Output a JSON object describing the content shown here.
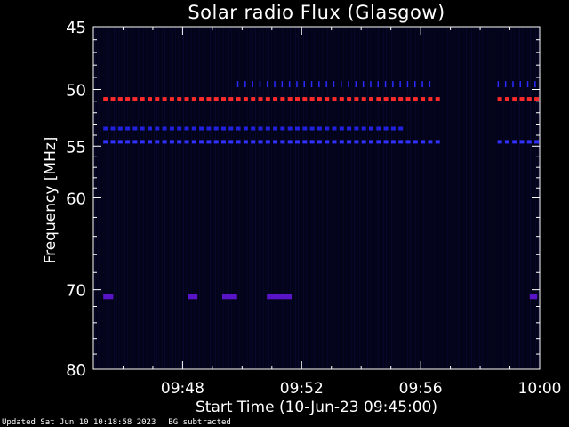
{
  "chart_data": {
    "type": "heatmap",
    "title": "Solar radio Flux (Glasgow)",
    "xlabel": "Start Time (10-Jun-23 09:45:00)",
    "ylabel": "Frequency [MHz]",
    "x_range": [
      "09:45",
      "10:00"
    ],
    "y_range": [
      45,
      80
    ],
    "y_scale": "log",
    "y_inverted": true,
    "x_ticks": [
      "09:48",
      "09:52",
      "09:56",
      "10:00"
    ],
    "y_ticks": [
      45,
      50,
      55,
      60,
      70,
      80
    ],
    "background": "#03031a",
    "bands": [
      {
        "freq": 50.8,
        "start": "09:45:20",
        "end": "09:56:30",
        "color": "#ff2a2a",
        "pattern": "dashed"
      },
      {
        "freq": 50.8,
        "start": "09:58:35",
        "end": "09:59:50",
        "color": "#ff2a2a",
        "pattern": "dashed"
      },
      {
        "freq": 53.4,
        "start": "09:45:20",
        "end": "09:55:30",
        "color": "#2020dd",
        "pattern": "dashed"
      },
      {
        "freq": 54.6,
        "start": "09:45:20",
        "end": "09:56:30",
        "color": "#3030ff",
        "pattern": "dashed"
      },
      {
        "freq": 54.6,
        "start": "09:58:35",
        "end": "09:59:50",
        "color": "#3030ff",
        "pattern": "dashed"
      },
      {
        "freq": 49.6,
        "start": "09:49:50",
        "end": "09:56:30",
        "color": "#2a2aff",
        "pattern": "ticks"
      },
      {
        "freq": 49.6,
        "start": "09:58:35",
        "end": "09:59:55",
        "color": "#2a2aff",
        "pattern": "ticks"
      },
      {
        "freq": 70.8,
        "start": "09:45:20",
        "end": "09:45:40",
        "color": "#5a14c8",
        "pattern": "solid"
      },
      {
        "freq": 70.8,
        "start": "09:48:10",
        "end": "09:48:30",
        "color": "#5a14c8",
        "pattern": "solid"
      },
      {
        "freq": 70.8,
        "start": "09:49:20",
        "end": "09:49:50",
        "color": "#5a14c8",
        "pattern": "solid"
      },
      {
        "freq": 70.8,
        "start": "09:50:50",
        "end": "09:51:40",
        "color": "#5a14c8",
        "pattern": "solid"
      },
      {
        "freq": 70.8,
        "start": "09:59:40",
        "end": "09:59:55",
        "color": "#5a14c8",
        "pattern": "solid"
      }
    ]
  },
  "footer": {
    "updated": "Updated Sat Jun 10 10:18:58 2023",
    "note": "BG subtracted"
  }
}
